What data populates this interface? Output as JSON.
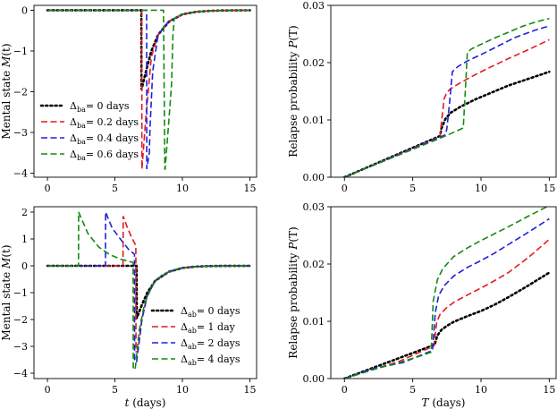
{
  "chart_data": [
    {
      "id": "tl",
      "type": "line",
      "xlabel": "",
      "ylabel": "Mental state M(t)",
      "xlim": [
        -1,
        15.5
      ],
      "ylim": [
        -4.1,
        0.12
      ],
      "xticks": [
        0,
        5,
        10,
        15
      ],
      "xtick_labels": [
        "0",
        "5",
        "10",
        "15"
      ],
      "yticks": [
        0,
        -1,
        -2,
        -3,
        -4
      ],
      "ytick_labels": [
        "0",
        "−1",
        "−2",
        "−3",
        "−4"
      ],
      "legend": {
        "placement": "lower-left",
        "symbol": "Δ",
        "sub": "ba"
      },
      "series": [
        {
          "name": "= 0 days",
          "color": "#000000",
          "dash": "dotted",
          "x": [
            0,
            6.95,
            6.96,
            6.97,
            7.3,
            7.7,
            8.2,
            9,
            10,
            11,
            12,
            13,
            15
          ],
          "y": [
            0,
            0,
            -0.02,
            -1.95,
            -1.5,
            -1.0,
            -0.6,
            -0.28,
            -0.1,
            -0.04,
            -0.015,
            -0.005,
            0
          ]
        },
        {
          "name": "= 0.2 days",
          "color": "#e41a1c",
          "dash": "dashed",
          "x": [
            0,
            6.99,
            7.0,
            7.3,
            7.7,
            8.2,
            9,
            10,
            11,
            12,
            13,
            15
          ],
          "y": [
            0,
            0,
            -3.9,
            -2.6,
            -1.15,
            -0.6,
            -0.27,
            -0.1,
            -0.04,
            -0.015,
            -0.005,
            0
          ]
        },
        {
          "name": "= 0.4 days",
          "color": "#1f1fe0",
          "dash": "dashed",
          "x": [
            0,
            7.35,
            7.36,
            7.55,
            7.6,
            7.8,
            8.2,
            9,
            10,
            11,
            12,
            13,
            15
          ],
          "y": [
            0,
            0,
            -3.9,
            -3.5,
            -2.9,
            -1.5,
            -0.6,
            -0.27,
            -0.1,
            -0.04,
            -0.015,
            -0.005,
            0
          ]
        },
        {
          "name": "= 0.6 days",
          "color": "#138a13",
          "dash": "dashed",
          "x": [
            0,
            8.6,
            8.7,
            8.72,
            9.0,
            9.2,
            9.3,
            9.4,
            10,
            11,
            12,
            13,
            15
          ],
          "y": [
            0,
            0,
            -3.9,
            -3.9,
            -2.7,
            -1.8,
            -0.6,
            -0.2,
            -0.1,
            -0.04,
            -0.015,
            -0.005,
            0
          ]
        }
      ]
    },
    {
      "id": "tr",
      "type": "line",
      "xlabel": "",
      "ylabel": "Relapse probability P(T)",
      "xlim": [
        -1,
        15.5
      ],
      "ylim": [
        0,
        0.03
      ],
      "xticks": [
        0,
        5,
        10,
        15
      ],
      "xtick_labels": [
        "0",
        "5",
        "10",
        "15"
      ],
      "yticks": [
        0,
        0.01,
        0.02,
        0.03
      ],
      "ytick_labels": [
        "0.00",
        "0.01",
        "0.02",
        "0.03"
      ],
      "series": [
        {
          "color": "#000000",
          "dash": "dotted",
          "x": [
            0,
            7.0,
            7.1,
            7.4,
            7.8,
            8.5,
            9.5,
            10.5,
            12,
            13.5,
            15
          ],
          "y": [
            0,
            0.0072,
            0.0085,
            0.0102,
            0.0113,
            0.0123,
            0.0135,
            0.0145,
            0.016,
            0.0172,
            0.0184
          ]
        },
        {
          "color": "#e41a1c",
          "dash": "dashed",
          "x": [
            0,
            7.0,
            7.1,
            7.3,
            7.5,
            7.8,
            8.5,
            9.5,
            10.5,
            12,
            13.5,
            15
          ],
          "y": [
            0,
            0.0071,
            0.0095,
            0.0137,
            0.0148,
            0.0155,
            0.0165,
            0.0178,
            0.019,
            0.0207,
            0.0223,
            0.024
          ]
        },
        {
          "color": "#1f1fe0",
          "dash": "dashed",
          "x": [
            0,
            7.4,
            7.5,
            7.7,
            7.9,
            8.3,
            9,
            10,
            11,
            12.5,
            14,
            15
          ],
          "y": [
            0,
            0.0074,
            0.0085,
            0.013,
            0.0184,
            0.0193,
            0.0203,
            0.0214,
            0.0226,
            0.0244,
            0.0257,
            0.0264
          ]
        },
        {
          "color": "#138a13",
          "dash": "dashed",
          "x": [
            0,
            7.4,
            8.7,
            8.85,
            9.0,
            9.3,
            10,
            11,
            12,
            13,
            14,
            15
          ],
          "y": [
            0,
            0.0072,
            0.0086,
            0.015,
            0.0218,
            0.0224,
            0.0232,
            0.0243,
            0.0253,
            0.0263,
            0.0271,
            0.0277
          ]
        }
      ]
    },
    {
      "id": "bl",
      "type": "line",
      "xlabel": "t (days)",
      "ylabel": "Mental state M(t)",
      "xlim": [
        -1,
        15.5
      ],
      "ylim": [
        -4.2,
        2.2
      ],
      "xticks": [
        0,
        5,
        10,
        15
      ],
      "xtick_labels": [
        "0",
        "5",
        "10",
        "15"
      ],
      "yticks": [
        2,
        1,
        0,
        -1,
        -2,
        -3,
        -4
      ],
      "ytick_labels": [
        "2",
        "1",
        "0",
        "−1",
        "−2",
        "−3",
        "−4"
      ],
      "legend": {
        "placement": "lower-right",
        "symbol": "Δ",
        "sub": "ab"
      },
      "series": [
        {
          "name": "= 0 days",
          "color": "#000000",
          "dash": "dotted",
          "x": [
            0,
            6.6,
            6.61,
            6.62,
            7.0,
            7.4,
            8,
            9,
            10,
            11,
            12,
            13,
            15
          ],
          "y": [
            0,
            0,
            -0.02,
            -1.95,
            -1.45,
            -1.0,
            -0.55,
            -0.22,
            -0.08,
            -0.03,
            -0.01,
            -0.003,
            0
          ]
        },
        {
          "name": "= 1 day",
          "color": "#e41a1c",
          "dash": "dashed",
          "x": [
            0,
            5.6,
            5.61,
            5.9,
            6.2,
            6.5,
            6.55,
            6.56,
            6.7,
            7.0,
            7.4,
            8,
            9,
            10,
            11,
            12,
            15
          ],
          "y": [
            0,
            0,
            1.85,
            1.45,
            1.1,
            0.8,
            0.75,
            -3.2,
            -3.2,
            -2.0,
            -1.1,
            -0.55,
            -0.22,
            -0.08,
            -0.03,
            -0.01,
            0
          ]
        },
        {
          "name": "= 2 days",
          "color": "#1f1fe0",
          "dash": "dashed",
          "x": [
            0,
            4.3,
            4.31,
            4.8,
            5.4,
            6.0,
            6.4,
            6.45,
            6.46,
            6.6,
            7.0,
            7.4,
            8,
            9,
            10,
            11,
            12,
            15
          ],
          "y": [
            0,
            0,
            2.0,
            1.4,
            1.0,
            0.62,
            0.45,
            0.42,
            -3.5,
            -3.6,
            -2.0,
            -1.1,
            -0.55,
            -0.22,
            -0.08,
            -0.03,
            -0.01,
            0
          ]
        },
        {
          "name": "= 4 days",
          "color": "#138a13",
          "dash": "dashed",
          "x": [
            0,
            2.3,
            2.31,
            3.0,
            3.8,
            4.6,
            5.4,
            6.3,
            6.35,
            6.36,
            6.5,
            6.8,
            7.2,
            7.8,
            8.5,
            9.5,
            10.5,
            12,
            15
          ],
          "y": [
            0,
            0,
            2.0,
            1.2,
            0.7,
            0.42,
            0.25,
            0.13,
            0.12,
            -3.85,
            -3.85,
            -2.4,
            -1.4,
            -0.7,
            -0.33,
            -0.13,
            -0.05,
            -0.01,
            0
          ]
        }
      ]
    },
    {
      "id": "br",
      "type": "line",
      "xlabel": "T (days)",
      "ylabel": "Relapse probability P(T)",
      "xlim": [
        -1,
        15.5
      ],
      "ylim": [
        0,
        0.03
      ],
      "xticks": [
        0,
        5,
        10,
        15
      ],
      "xtick_labels": [
        "0",
        "5",
        "10",
        "15"
      ],
      "yticks": [
        0,
        0.01,
        0.02,
        0.03
      ],
      "ytick_labels": [
        "0.00",
        "0.01",
        "0.02",
        "0.03"
      ],
      "series": [
        {
          "color": "#000000",
          "dash": "dotted",
          "x": [
            0,
            6.6,
            6.8,
            7.1,
            7.5,
            8,
            9,
            10,
            11,
            12,
            13.5,
            15
          ],
          "y": [
            0,
            0.0059,
            0.0075,
            0.0085,
            0.0092,
            0.0099,
            0.0109,
            0.0118,
            0.0129,
            0.0142,
            0.0163,
            0.0185
          ]
        },
        {
          "color": "#e41a1c",
          "dash": "dashed",
          "x": [
            0,
            2.0,
            4.0,
            5.6,
            6.55,
            6.75,
            7.0,
            7.5,
            8,
            9,
            10,
            11,
            12,
            13.5,
            15
          ],
          "y": [
            0,
            0.0015,
            0.003,
            0.0047,
            0.0057,
            0.0098,
            0.0112,
            0.0124,
            0.0133,
            0.0146,
            0.0158,
            0.0171,
            0.0185,
            0.0212,
            0.0243
          ]
        },
        {
          "color": "#1f1fe0",
          "dash": "dashed",
          "x": [
            0,
            2.0,
            4.3,
            5.5,
            6.45,
            6.65,
            6.9,
            7.3,
            8,
            9,
            10,
            11,
            12,
            13.5,
            15
          ],
          "y": [
            0,
            0.0017,
            0.0028,
            0.004,
            0.0049,
            0.0115,
            0.0145,
            0.0162,
            0.0179,
            0.0194,
            0.0206,
            0.0219,
            0.0234,
            0.0256,
            0.0279
          ]
        },
        {
          "color": "#138a13",
          "dash": "dashed",
          "x": [
            0,
            2.3,
            4.0,
            5.5,
            6.35,
            6.5,
            6.8,
            7.2,
            8,
            9,
            10,
            11,
            12,
            13.5,
            15
          ],
          "y": [
            0,
            0.0017,
            0.0028,
            0.0039,
            0.0046,
            0.0135,
            0.0172,
            0.0192,
            0.0213,
            0.0228,
            0.0241,
            0.0253,
            0.0265,
            0.0284,
            0.0302
          ]
        }
      ]
    }
  ]
}
